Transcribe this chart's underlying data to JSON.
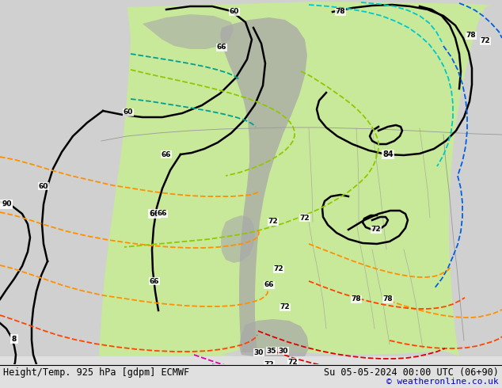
{
  "title_left": "Height/Temp. 925 hPa [gdpm] ECMWF",
  "title_right": "Su 05-05-2024 00:00 UTC (06+90)",
  "copyright": "© weatheronline.co.uk",
  "bg_color": "#e0e0e0",
  "land_green": "#c8e89a",
  "mountain_gray": "#a8a8a8",
  "ocean_gray": "#d0d0d0",
  "figsize": [
    6.34,
    4.9
  ],
  "dpi": 100
}
